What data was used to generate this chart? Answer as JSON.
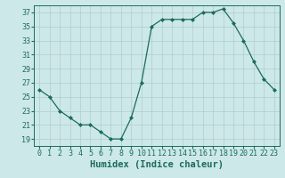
{
  "x": [
    0,
    1,
    2,
    3,
    4,
    5,
    6,
    7,
    8,
    9,
    10,
    11,
    12,
    13,
    14,
    15,
    16,
    17,
    18,
    19,
    20,
    21,
    22,
    23
  ],
  "y": [
    26,
    25,
    23,
    22,
    21,
    21,
    20,
    19,
    19,
    22,
    27,
    35,
    36,
    36,
    36,
    36,
    37,
    37,
    37.5,
    35.5,
    33,
    30,
    27.5,
    26
  ],
  "line_color": "#1a6b5e",
  "marker_color": "#1a6b5e",
  "bg_color": "#cde8e8",
  "grid_color": "#b0cccc",
  "xlabel": "Humidex (Indice chaleur)",
  "ylabel": "",
  "xlim": [
    -0.5,
    23.5
  ],
  "ylim": [
    18,
    38
  ],
  "yticks": [
    19,
    21,
    23,
    25,
    27,
    29,
    31,
    33,
    35,
    37
  ],
  "xticks": [
    0,
    1,
    2,
    3,
    4,
    5,
    6,
    7,
    8,
    9,
    10,
    11,
    12,
    13,
    14,
    15,
    16,
    17,
    18,
    19,
    20,
    21,
    22,
    23
  ],
  "xlabel_color": "#1a6b5e",
  "tick_color": "#1a6b5e",
  "label_fontsize": 7.5,
  "tick_fontsize": 6.0
}
